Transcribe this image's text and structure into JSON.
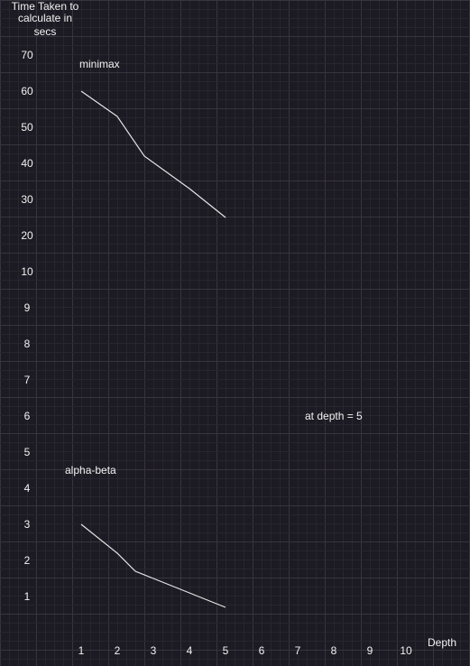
{
  "chart_data": {
    "type": "line",
    "ylabel_lines": [
      "Time Taken to",
      "calculate in",
      "secs"
    ],
    "xlabel": "Depth",
    "x_ticks": [
      "1",
      "2",
      "3",
      "4",
      "5",
      "6",
      "7",
      "8",
      "9",
      "10"
    ],
    "y_ticks": [
      "70",
      "60",
      "50",
      "40",
      "30",
      "20",
      "10",
      "9",
      "8",
      "7",
      "6",
      "5",
      "4",
      "3",
      "2",
      "1"
    ],
    "grid": true,
    "annotation": "at depth = 5",
    "series": [
      {
        "name": "minimax",
        "x": [
          1,
          2,
          2.75,
          4,
          5
        ],
        "y": [
          60,
          53,
          42,
          33,
          25
        ]
      },
      {
        "name": "alpha-beta",
        "x": [
          1,
          2,
          2.5,
          3,
          4,
          5
        ],
        "y": [
          3,
          2.2,
          1.7,
          1.5,
          1.1,
          0.7
        ]
      }
    ],
    "colors": {
      "background": "#1c1a22",
      "grid_major": "#37343f",
      "grid_minor": "#27252d",
      "line": "#e6e6e6",
      "text": "#f2f2f2"
    }
  }
}
